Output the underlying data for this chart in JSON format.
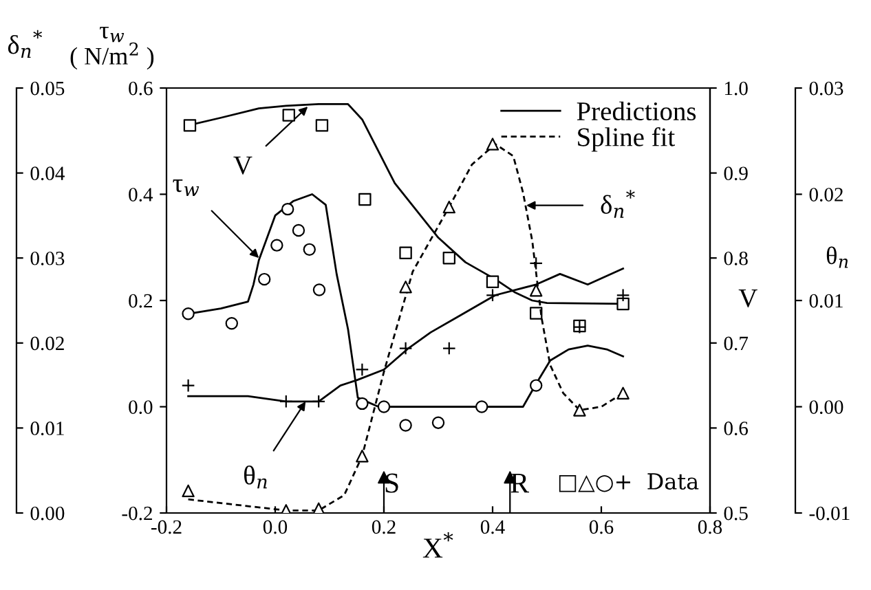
{
  "chart_data": [
    {
      "type": "line",
      "xlabel": "X$^{*}$",
      "ylabel": "τ$_{w}$\n( N/m$^{2}$ )",
      "y2label": "V",
      "y3label": "δ$_{n}$$^{*}$",
      "xlim": [
        -0.2,
        0.8
      ],
      "xticks": [
        -0.2,
        {
          "value": 0.0,
          "label": "0.0"
        },
        0.2,
        0.4,
        0.6,
        0.8
      ],
      "ylim": [
        -0.2,
        0.6
      ],
      "yticks": [
        -0.2,
        {
          "value": 0.0,
          "label": "0.0"
        },
        0.2,
        0.4,
        0.6
      ],
      "y2lim": [
        0.5,
        1.0
      ],
      "y2ticks": [
        0.5,
        0.6,
        0.7,
        0.8,
        0.9,
        {
          "value": 1.0,
          "label": "1.0"
        }
      ],
      "y3lim": [
        0.0,
        0.05
      ],
      "y3ticks": [
        {
          "value": 0.0,
          "label": "0.00"
        },
        {
          "value": 0.01,
          "label": "0.01"
        },
        {
          "value": 0.02,
          "label": "0.02"
        },
        {
          "value": 0.03,
          "label": "0.03"
        },
        {
          "value": 0.04,
          "label": "0.04"
        },
        {
          "value": 0.05,
          "label": "0.05"
        }
      ],
      "legend": "top right",
      "series": [
        {
          "name": "Predictions",
          "axis": "y",
          "color": "#000000",
          "line_style": "solid",
          "x": [
            -0.16,
            -0.1,
            -0.05,
            -0.04,
            -0.03,
            0.0,
            0.033,
            0.068,
            0.093,
            0.113,
            0.134,
            0.152,
            0.19,
            0.3,
            0.38,
            0.456,
            0.48,
            0.506,
            0.54,
            0.575,
            0.61,
            0.64
          ],
          "values": [
            0.175,
            0.185,
            0.198,
            0.23,
            0.276,
            0.36,
            0.387,
            0.4,
            0.38,
            0.25,
            0.146,
            0.017,
            0.0,
            0.0,
            0.0,
            0.0,
            0.043,
            0.087,
            0.108,
            0.115,
            0.108,
            0.095
          ]
        },
        {
          "type": "scatter",
          "axis": "y",
          "color": "#000000",
          "marker": "circle",
          "x": [
            -0.16,
            -0.08,
            -0.02,
            0.003,
            0.023,
            0.043,
            0.063,
            0.081,
            0.16,
            0.2,
            0.24,
            0.3,
            0.38,
            0.48
          ],
          "values": [
            0.175,
            0.157,
            0.24,
            0.304,
            0.372,
            0.332,
            0.296,
            0.22,
            0.006,
            0.0,
            -0.035,
            -0.03,
            0.0,
            0.04
          ]
        },
        {
          "axis": "y2",
          "color": "#000000",
          "line_style": "solid",
          "x": [
            -0.16,
            -0.1,
            -0.03,
            0.02,
            0.08,
            0.134,
            0.16,
            0.22,
            0.3,
            0.35,
            0.405,
            0.44,
            0.473,
            0.5,
            0.64
          ],
          "values": [
            0.956,
            0.965,
            0.976,
            0.979,
            0.981,
            0.981,
            0.963,
            0.888,
            0.824,
            0.795,
            0.775,
            0.76,
            0.75,
            0.747,
            0.746
          ]
        },
        {
          "type": "scatter",
          "axis": "y2",
          "color": "#000000",
          "marker": "square",
          "x": [
            -0.157,
            0.025,
            0.086,
            0.165,
            0.24,
            0.32,
            0.4,
            0.48,
            0.56,
            0.64
          ],
          "values": [
            0.956,
            0.968,
            0.956,
            0.869,
            0.806,
            0.8,
            0.772,
            0.735,
            0.72,
            0.746
          ]
        },
        {
          "name": "Spline fit",
          "axis": "y3",
          "color": "#000000",
          "line_style": "dashed",
          "x": [
            -0.16,
            0.02,
            0.08,
            0.127,
            0.16,
            0.2,
            0.253,
            0.32,
            0.362,
            0.405,
            0.438,
            0.456,
            0.473,
            0.49,
            0.506,
            0.53,
            0.56,
            0.6,
            0.64
          ],
          "values": [
            0.0016,
            0.0003,
            0.0003,
            0.0021,
            0.0067,
            0.0166,
            0.0284,
            0.036,
            0.041,
            0.0434,
            0.042,
            0.0377,
            0.032,
            0.023,
            0.0174,
            0.0141,
            0.0121,
            0.0125,
            0.0141
          ]
        },
        {
          "type": "scatter",
          "axis": "y3",
          "color": "#000000",
          "marker": "triangle",
          "x": [
            -0.16,
            0.02,
            0.08,
            0.16,
            0.24,
            0.32,
            0.4,
            0.48,
            0.56,
            0.64
          ],
          "values": [
            0.0026,
            0.0003,
            0.0005,
            0.0067,
            0.0266,
            0.036,
            0.0434,
            0.0262,
            0.0121,
            0.0141
          ]
        }
      ],
      "annotations": [
        {
          "text": "V",
          "x": 0.06,
          "y": 0.565
        },
        {
          "text": "τ$_{w}$",
          "x": -0.03,
          "y": 0.28
        },
        {
          "text": "δ$_{n}$$^{*}$",
          "x": 0.462,
          "y": 0.379
        },
        "S",
        "R",
        "□△○+  Data"
      ]
    },
    {
      "type": "line",
      "ylabel": "θ$_{n}$",
      "tick_labels": "y",
      "annotations": [
        {
          "text": "θ$_{n}$",
          "x": 0.056,
          "y": 0.0005
        }
      ],
      "xlim": [
        -0.2,
        0.8
      ],
      "ylim": [
        -0.01,
        0.03
      ],
      "yticks": [
        {
          "value": -0.01,
          "label": "-0.01"
        },
        {
          "value": 0.0,
          "label": "0.00"
        },
        {
          "value": 0.01,
          "label": "0.01"
        },
        {
          "value": 0.02,
          "label": "0.02"
        },
        {
          "value": 0.03,
          "label": "0.03"
        }
      ],
      "series": [
        {
          "color": "#000000",
          "line_style": "solid",
          "x": [
            -0.16,
            -0.05,
            0.02,
            0.08,
            0.12,
            0.15,
            0.2,
            0.245,
            0.286,
            0.337,
            0.405,
            0.48,
            0.524,
            0.575,
            0.64
          ],
          "values": [
            0.001,
            0.001,
            0.0005,
            0.0005,
            0.002,
            0.0025,
            0.0035,
            0.0055,
            0.007,
            0.0085,
            0.0105,
            0.0115,
            0.0125,
            0.0115,
            0.013
          ]
        },
        {
          "type": "scatter",
          "color": "#000000",
          "marker": "cross",
          "x": [
            -0.16,
            0.02,
            0.08,
            0.16,
            0.24,
            0.32,
            0.4,
            0.48,
            0.56,
            0.64
          ],
          "values": [
            0.002,
            0.0005,
            0.0005,
            0.0035,
            0.0055,
            0.0055,
            0.0105,
            0.0135,
            0.0075,
            0.0105
          ]
        }
      ]
    }
  ]
}
